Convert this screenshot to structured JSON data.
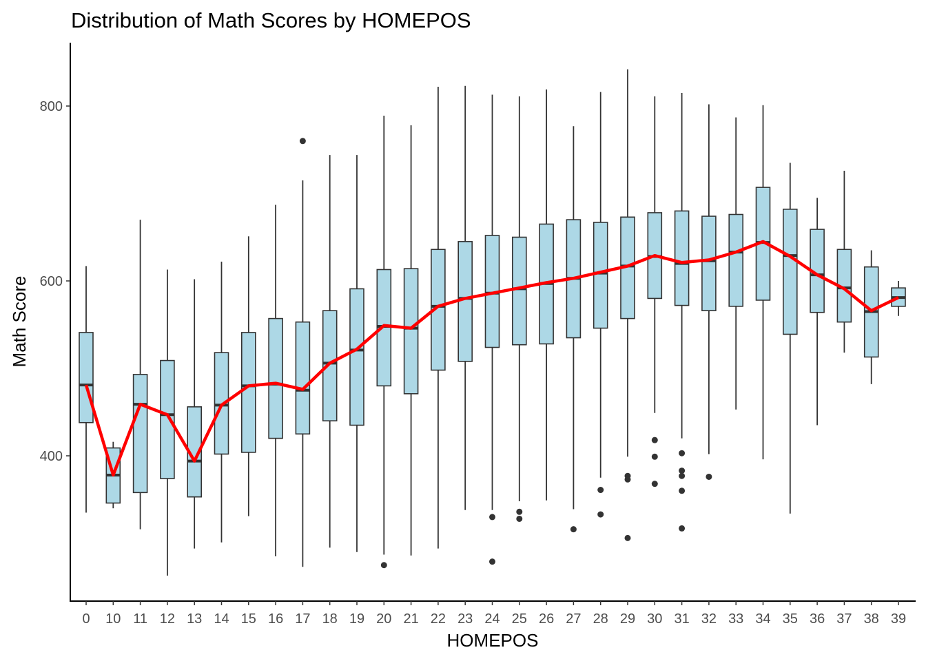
{
  "chart_data": {
    "type": "boxplot",
    "title": "Distribution of Math Scores by HOMEPOS",
    "xlabel": "HOMEPOS",
    "ylabel": "Math Score",
    "ylim": [
      230,
      870
    ],
    "y_ticks": [
      400,
      600,
      800
    ],
    "grid": false,
    "legend": "none",
    "colors": {
      "box_fill": "#add8e6",
      "box_stroke": "#333333",
      "mean_line": "#ff0000",
      "outlier": "#333333"
    },
    "categories": [
      "0",
      "10",
      "11",
      "12",
      "13",
      "14",
      "15",
      "16",
      "17",
      "18",
      "19",
      "20",
      "21",
      "22",
      "23",
      "24",
      "25",
      "26",
      "27",
      "28",
      "29",
      "30",
      "31",
      "32",
      "33",
      "34",
      "35",
      "36",
      "37",
      "38",
      "39"
    ],
    "boxes": [
      {
        "min": 335,
        "q1": 438,
        "median": 481,
        "q3": 541,
        "max": 617,
        "outliers": []
      },
      {
        "min": 340,
        "q1": 346,
        "median": 378,
        "q3": 409,
        "max": 416,
        "outliers": []
      },
      {
        "min": 316,
        "q1": 358,
        "median": 459,
        "q3": 493,
        "max": 670,
        "outliers": []
      },
      {
        "min": 263,
        "q1": 374,
        "median": 447,
        "q3": 509,
        "max": 613,
        "outliers": []
      },
      {
        "min": 294,
        "q1": 353,
        "median": 394,
        "q3": 456,
        "max": 602,
        "outliers": []
      },
      {
        "min": 301,
        "q1": 402,
        "median": 458,
        "q3": 518,
        "max": 622,
        "outliers": []
      },
      {
        "min": 331,
        "q1": 404,
        "median": 480,
        "q3": 541,
        "max": 651,
        "outliers": []
      },
      {
        "min": 285,
        "q1": 420,
        "median": 482,
        "q3": 557,
        "max": 687,
        "outliers": []
      },
      {
        "min": 273,
        "q1": 425,
        "median": 475,
        "q3": 553,
        "max": 715,
        "outliers": [
          760
        ]
      },
      {
        "min": 295,
        "q1": 440,
        "median": 506,
        "q3": 566,
        "max": 744,
        "outliers": []
      },
      {
        "min": 290,
        "q1": 435,
        "median": 521,
        "q3": 591,
        "max": 744,
        "outliers": []
      },
      {
        "min": 287,
        "q1": 480,
        "median": 548,
        "q3": 613,
        "max": 789,
        "outliers": [
          275
        ]
      },
      {
        "min": 286,
        "q1": 471,
        "median": 546,
        "q3": 614,
        "max": 778,
        "outliers": []
      },
      {
        "min": 294,
        "q1": 498,
        "median": 571,
        "q3": 636,
        "max": 822,
        "outliers": []
      },
      {
        "min": 338,
        "q1": 508,
        "median": 580,
        "q3": 645,
        "max": 823,
        "outliers": []
      },
      {
        "min": 338,
        "q1": 524,
        "median": 586,
        "q3": 652,
        "max": 813,
        "outliers": [
          330,
          279
        ]
      },
      {
        "min": 348,
        "q1": 527,
        "median": 591,
        "q3": 650,
        "max": 811,
        "outliers": [
          336,
          328
        ]
      },
      {
        "min": 349,
        "q1": 528,
        "median": 597,
        "q3": 665,
        "max": 819,
        "outliers": []
      },
      {
        "min": 339,
        "q1": 535,
        "median": 603,
        "q3": 670,
        "max": 777,
        "outliers": [
          316
        ]
      },
      {
        "min": 375,
        "q1": 546,
        "median": 609,
        "q3": 667,
        "max": 816,
        "outliers": [
          361,
          333
        ]
      },
      {
        "min": 399,
        "q1": 557,
        "median": 617,
        "q3": 673,
        "max": 842,
        "outliers": [
          377,
          373,
          306
        ]
      },
      {
        "min": 449,
        "q1": 580,
        "median": 628,
        "q3": 678,
        "max": 811,
        "outliers": [
          418,
          399,
          368
        ]
      },
      {
        "min": 420,
        "q1": 572,
        "median": 620,
        "q3": 680,
        "max": 815,
        "outliers": [
          403,
          383,
          377,
          360,
          317
        ]
      },
      {
        "min": 402,
        "q1": 566,
        "median": 623,
        "q3": 674,
        "max": 802,
        "outliers": [
          376
        ]
      },
      {
        "min": 453,
        "q1": 571,
        "median": 633,
        "q3": 676,
        "max": 787,
        "outliers": []
      },
      {
        "min": 396,
        "q1": 578,
        "median": 644,
        "q3": 707,
        "max": 801,
        "outliers": []
      },
      {
        "min": 334,
        "q1": 539,
        "median": 629,
        "q3": 682,
        "max": 735,
        "outliers": []
      },
      {
        "min": 435,
        "q1": 564,
        "median": 607,
        "q3": 659,
        "max": 695,
        "outliers": []
      },
      {
        "min": 518,
        "q1": 553,
        "median": 592,
        "q3": 636,
        "max": 726,
        "outliers": []
      },
      {
        "min": 482,
        "q1": 513,
        "median": 565,
        "q3": 616,
        "max": 635,
        "outliers": []
      },
      {
        "min": 560,
        "q1": 571,
        "median": 581,
        "q3": 592,
        "max": 600,
        "outliers": []
      }
    ],
    "mean_line": [
      481,
      378,
      459,
      447,
      394,
      458,
      480,
      483,
      476,
      506,
      522,
      549,
      546,
      571,
      580,
      586,
      592,
      598,
      603,
      610,
      617,
      629,
      621,
      624,
      633,
      645,
      628,
      607,
      591,
      566,
      581
    ]
  }
}
